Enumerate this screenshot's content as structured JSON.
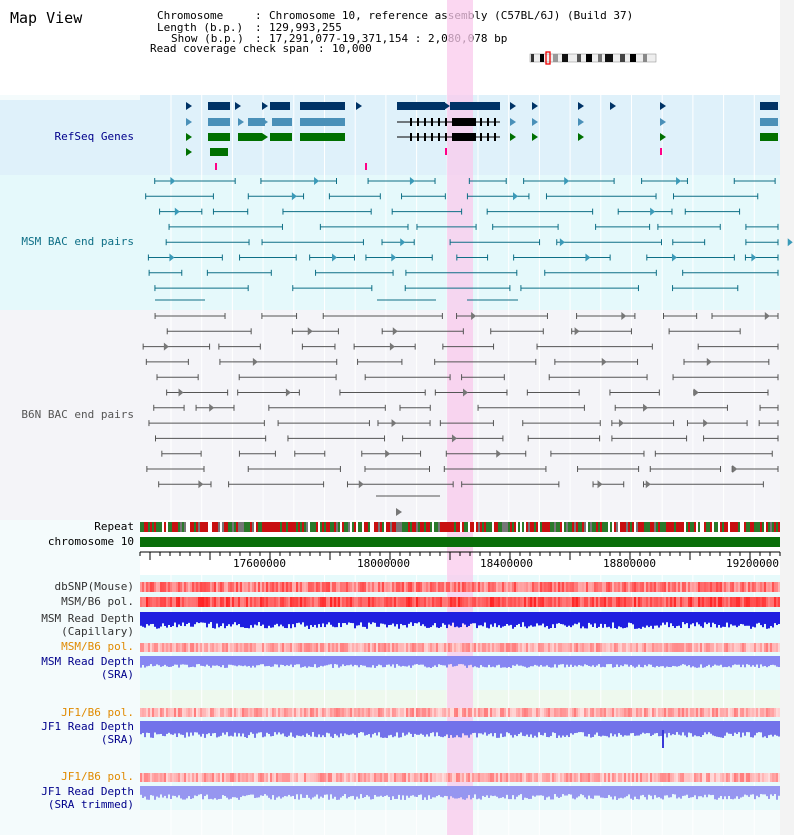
{
  "title": "Map View",
  "info": {
    "chromosome_key": "Chromosome",
    "chromosome_val": "Chromosome 10, reference assembly (C57BL/6J) (Build 37)",
    "length_key": "Length (b.p.)",
    "length_val": "129,993,255",
    "show_key": "Show (b.p.)",
    "show_val": "17,291,077-19,371,154 : 2,080,078 bp",
    "span_key": "Read coverage check span",
    "span_val": "10,000"
  },
  "tracks": {
    "refseq": "RefSeq Genes",
    "msm_bac": "MSM BAC end pairs",
    "b6n_bac": "B6N BAC end pairs",
    "repeat": "Repeat",
    "chromosome": "chromosome 10",
    "dbsnp": "dbSNP(Mouse)",
    "msm_b6_pol": "MSM/B6 pol.",
    "msm_read_depth": "MSM Read Depth",
    "capillary": "(Capillary)",
    "msm_b6_pol2": "MSM/B6 pol.",
    "msm_read_depth_sra": "MSM Read Depth",
    "sra1": "(SRA)",
    "jf1_b6_pol": "JF1/B6 pol.",
    "jf1_read_depth": "JF1 Read Depth",
    "sra2": "(SRA)",
    "jf1_b6_pol2": "JF1/B6 pol.",
    "jf1_read_depth_trim": "JF1 Read Depth",
    "sra_trimmed": "(SRA trimmed)"
  },
  "axis_ticks": [
    "17600000",
    "18000000",
    "18400000",
    "18800000",
    "19200000"
  ],
  "colors": {
    "refseq_bg": "#dff1fa",
    "msm_bg": "#e5f9fb",
    "b6n_bg": "#f4f4f8",
    "highlight": "#f9c9ec",
    "label_blue": "#00008b",
    "label_teal": "#0e6f86",
    "label_orange": "#e08a00",
    "chrom_green": "#0a6e0a"
  }
}
